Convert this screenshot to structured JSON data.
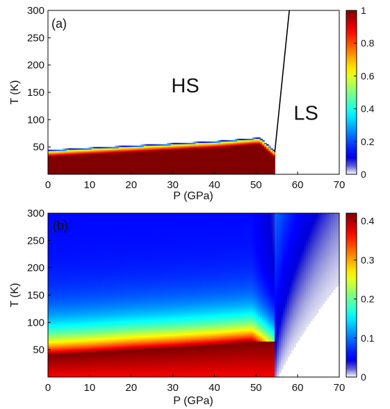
{
  "chart_data": [
    {
      "type": "heatmap",
      "panel_label": "(a)",
      "xlabel": "P (GPa)",
      "ylabel": "T (K)",
      "xlim": [
        0,
        70
      ],
      "ylim": [
        0,
        300
      ],
      "xticks": [
        0,
        10,
        20,
        30,
        40,
        50,
        60,
        70
      ],
      "yticks": [
        50,
        100,
        150,
        200,
        250,
        300
      ],
      "colormap": "jet (white at 0)",
      "colorbar": {
        "min": 0,
        "max": 1,
        "ticks": [
          0,
          0.2,
          0.4,
          0.6,
          0.8,
          1
        ]
      },
      "boundary_line": [
        [
          54.5,
          40
        ],
        [
          58,
          300
        ]
      ],
      "annotations": [
        {
          "text": "HS",
          "x": 33,
          "y": 150
        },
        {
          "text": "LS",
          "x": 62,
          "y": 100
        }
      ],
      "fraction_region": {
        "value_inside": 1,
        "top_edge_T": [
          [
            0,
            42
          ],
          [
            10,
            46
          ],
          [
            20,
            50
          ],
          [
            30,
            54
          ],
          [
            40,
            58
          ],
          [
            50,
            64
          ],
          [
            54.5,
            40
          ]
        ],
        "p_max": 54.5
      }
    },
    {
      "type": "heatmap",
      "panel_label": "(b)",
      "xlabel": "P (GPa)",
      "ylabel": "T (K)",
      "xlim": [
        0,
        70
      ],
      "ylim": [
        0,
        300
      ],
      "xticks": [
        0,
        10,
        20,
        30,
        40,
        50,
        60,
        70
      ],
      "yticks": [
        50,
        100,
        150,
        200,
        250,
        300
      ],
      "colormap": "jet (white at 0)",
      "colorbar": {
        "min": 0,
        "max": 0.42,
        "ticks": [
          0,
          0.1,
          0.2,
          0.3,
          0.4
        ]
      },
      "peak_ridge_T": [
        [
          0,
          40
        ],
        [
          10,
          44
        ],
        [
          20,
          49
        ],
        [
          30,
          53
        ],
        [
          40,
          58
        ],
        [
          50,
          64
        ]
      ],
      "p_transition": 54.5
    }
  ],
  "colors": {
    "jet": [
      "#00008f",
      "#0000ff",
      "#0080ff",
      "#00ffff",
      "#80ff80",
      "#ffff00",
      "#ff8000",
      "#ff0000",
      "#800000"
    ],
    "low_end": "#ffffff"
  }
}
